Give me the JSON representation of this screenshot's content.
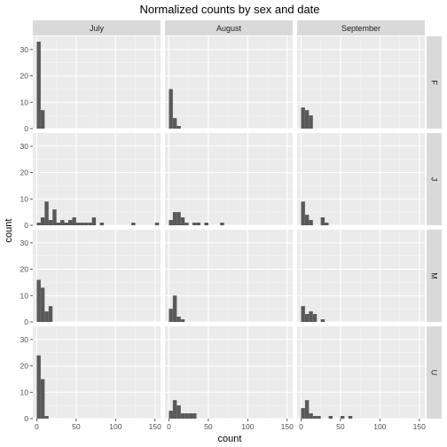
{
  "chart_data": {
    "type": "bar",
    "title": "Normalized counts by sex and date",
    "xlabel": "count",
    "ylabel": "count",
    "xlim": [
      -5,
      157
    ],
    "ylim": [
      0,
      35
    ],
    "x_ticks": [
      0,
      50,
      100,
      150
    ],
    "y_ticks": [
      0,
      10,
      20,
      30
    ],
    "bin_width": 5,
    "grid": true,
    "columns": [
      "July",
      "August",
      "September"
    ],
    "rows": [
      "F",
      "J",
      "M",
      "U"
    ],
    "panels": [
      {
        "row": "F",
        "col": "July",
        "bins": [
          {
            "x0": 0,
            "x1": 5,
            "count": 33
          },
          {
            "x0": 5,
            "x1": 10,
            "count": 7
          }
        ]
      },
      {
        "row": "F",
        "col": "August",
        "bins": [
          {
            "x0": 0,
            "x1": 5,
            "count": 15
          },
          {
            "x0": 5,
            "x1": 10,
            "count": 4
          },
          {
            "x0": 10,
            "x1": 15,
            "count": 1
          }
        ]
      },
      {
        "row": "F",
        "col": "September",
        "bins": [
          {
            "x0": 0,
            "x1": 5,
            "count": 8
          },
          {
            "x0": 5,
            "x1": 10,
            "count": 7
          },
          {
            "x0": 10,
            "x1": 15,
            "count": 5
          }
        ]
      },
      {
        "row": "J",
        "col": "July",
        "bins": [
          {
            "x0": 0,
            "x1": 5,
            "count": 1
          },
          {
            "x0": 5,
            "x1": 10,
            "count": 3
          },
          {
            "x0": 10,
            "x1": 15,
            "count": 9
          },
          {
            "x0": 15,
            "x1": 20,
            "count": 2
          },
          {
            "x0": 20,
            "x1": 25,
            "count": 6
          },
          {
            "x0": 25,
            "x1": 30,
            "count": 1
          },
          {
            "x0": 30,
            "x1": 35,
            "count": 2
          },
          {
            "x0": 35,
            "x1": 40,
            "count": 1
          },
          {
            "x0": 40,
            "x1": 45,
            "count": 2
          },
          {
            "x0": 45,
            "x1": 50,
            "count": 3
          },
          {
            "x0": 50,
            "x1": 55,
            "count": 1
          },
          {
            "x0": 55,
            "x1": 60,
            "count": 1
          },
          {
            "x0": 60,
            "x1": 65,
            "count": 1
          },
          {
            "x0": 65,
            "x1": 70,
            "count": 1
          },
          {
            "x0": 70,
            "x1": 75,
            "count": 3
          },
          {
            "x0": 80,
            "x1": 85,
            "count": 1
          },
          {
            "x0": 120,
            "x1": 125,
            "count": 1
          },
          {
            "x0": 150,
            "x1": 155,
            "count": 1
          }
        ]
      },
      {
        "row": "J",
        "col": "August",
        "bins": [
          {
            "x0": 0,
            "x1": 5,
            "count": 2
          },
          {
            "x0": 5,
            "x1": 10,
            "count": 5
          },
          {
            "x0": 10,
            "x1": 15,
            "count": 5
          },
          {
            "x0": 15,
            "x1": 20,
            "count": 3
          },
          {
            "x0": 20,
            "x1": 25,
            "count": 1
          },
          {
            "x0": 30,
            "x1": 35,
            "count": 1
          },
          {
            "x0": 35,
            "x1": 40,
            "count": 1
          },
          {
            "x0": 45,
            "x1": 50,
            "count": 1
          },
          {
            "x0": 65,
            "x1": 70,
            "count": 1
          }
        ]
      },
      {
        "row": "J",
        "col": "September",
        "bins": [
          {
            "x0": 0,
            "x1": 5,
            "count": 9
          },
          {
            "x0": 5,
            "x1": 10,
            "count": 4
          },
          {
            "x0": 10,
            "x1": 15,
            "count": 2
          },
          {
            "x0": 25,
            "x1": 30,
            "count": 3
          },
          {
            "x0": 30,
            "x1": 35,
            "count": 1
          }
        ]
      },
      {
        "row": "M",
        "col": "July",
        "bins": [
          {
            "x0": 0,
            "x1": 5,
            "count": 16
          },
          {
            "x0": 5,
            "x1": 10,
            "count": 13
          },
          {
            "x0": 10,
            "x1": 15,
            "count": 4
          },
          {
            "x0": 15,
            "x1": 20,
            "count": 6
          }
        ]
      },
      {
        "row": "M",
        "col": "August",
        "bins": [
          {
            "x0": 0,
            "x1": 5,
            "count": 5
          },
          {
            "x0": 5,
            "x1": 10,
            "count": 10
          },
          {
            "x0": 10,
            "x1": 15,
            "count": 2
          },
          {
            "x0": 15,
            "x1": 20,
            "count": 1
          }
        ]
      },
      {
        "row": "M",
        "col": "September",
        "bins": [
          {
            "x0": 0,
            "x1": 5,
            "count": 6
          },
          {
            "x0": 5,
            "x1": 10,
            "count": 3
          },
          {
            "x0": 10,
            "x1": 15,
            "count": 4
          },
          {
            "x0": 15,
            "x1": 20,
            "count": 3
          },
          {
            "x0": 25,
            "x1": 30,
            "count": 1
          }
        ]
      },
      {
        "row": "U",
        "col": "July",
        "bins": [
          {
            "x0": 0,
            "x1": 5,
            "count": 24
          },
          {
            "x0": 5,
            "x1": 10,
            "count": 15
          },
          {
            "x0": 10,
            "x1": 15,
            "count": 1
          }
        ]
      },
      {
        "row": "U",
        "col": "August",
        "bins": [
          {
            "x0": 0,
            "x1": 5,
            "count": 3
          },
          {
            "x0": 5,
            "x1": 10,
            "count": 7
          },
          {
            "x0": 10,
            "x1": 15,
            "count": 5
          },
          {
            "x0": 15,
            "x1": 20,
            "count": 2
          },
          {
            "x0": 20,
            "x1": 25,
            "count": 2
          },
          {
            "x0": 25,
            "x1": 30,
            "count": 2
          },
          {
            "x0": 30,
            "x1": 35,
            "count": 2
          }
        ]
      },
      {
        "row": "U",
        "col": "September",
        "bins": [
          {
            "x0": 0,
            "x1": 5,
            "count": 4
          },
          {
            "x0": 5,
            "x1": 10,
            "count": 7
          },
          {
            "x0": 10,
            "x1": 15,
            "count": 2
          },
          {
            "x0": 15,
            "x1": 20,
            "count": 1
          },
          {
            "x0": 20,
            "x1": 25,
            "count": 1
          },
          {
            "x0": 35,
            "x1": 40,
            "count": 1
          },
          {
            "x0": 50,
            "x1": 55,
            "count": 1
          },
          {
            "x0": 60,
            "x1": 65,
            "count": 1
          }
        ]
      }
    ]
  },
  "colors": {
    "panel_background": "#ebebeb",
    "strip_background": "#d9d9d9",
    "grid_major": "#ffffff",
    "grid_minor": "#f5f5f5",
    "bar_fill": "#595959",
    "tick": "#333333"
  }
}
